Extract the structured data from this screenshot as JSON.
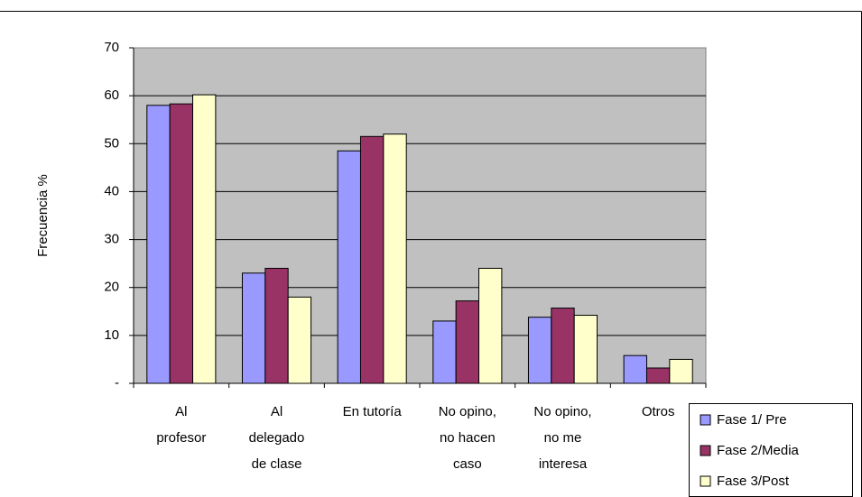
{
  "chart_data": {
    "type": "bar",
    "y_label": "Frecuencia %",
    "categories": [
      "Al\nprofesor",
      "Al\ndelegado\nde clase",
      "En tutoría",
      "No opino,\nno hacen\ncaso",
      "No opino,\nno me\ninteresa",
      "Otros"
    ],
    "series": [
      {
        "name": "Fase 1/ Pre",
        "color": "#9999ff",
        "values": [
          58,
          23,
          48.5,
          13,
          13.8,
          5.8
        ]
      },
      {
        "name": "Fase 2/Media",
        "color": "#993366",
        "values": [
          58.3,
          24,
          51.5,
          17.2,
          15.7,
          3.2
        ]
      },
      {
        "name": "Fase 3/Post",
        "color": "#ffffcc",
        "values": [
          60.2,
          18,
          52,
          24,
          14.2,
          5
        ]
      }
    ],
    "ylim": [
      0,
      70
    ],
    "yticks": [
      {
        "value": 0,
        "label": "-"
      },
      10,
      20,
      30,
      40,
      50,
      60,
      70
    ],
    "grid": true,
    "legend": "bottom-right"
  }
}
